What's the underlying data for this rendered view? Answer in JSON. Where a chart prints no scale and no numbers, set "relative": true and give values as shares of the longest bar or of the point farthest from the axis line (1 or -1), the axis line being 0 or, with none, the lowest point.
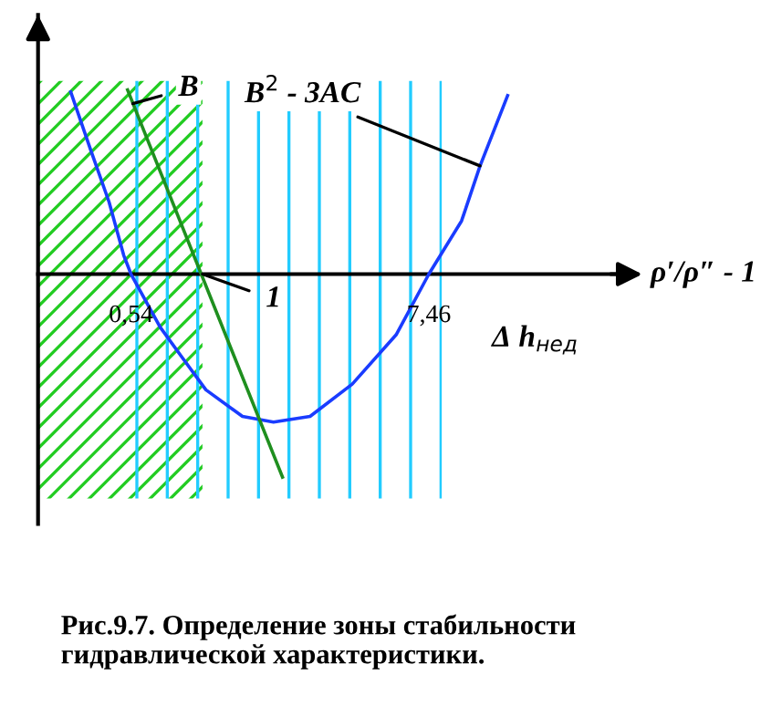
{
  "chart_data": {
    "type": "line",
    "relative": true,
    "xlabel": "ρ′/ρ″ - 1",
    "x": [
      -0.86,
      -0.39,
      0.03,
      0.37,
      0.54,
      1.22,
      1.73,
      2.28,
      3.13,
      3.85,
      4.7,
      5.68,
      6.7,
      7.46,
      8.22,
      8.65,
      9.29
    ],
    "series": [
      {
        "color": "#1a3cff",
        "values": [
          0.897,
          0.607,
          0.355,
          0.093,
          0.0,
          -0.262,
          -0.411,
          -0.57,
          -0.701,
          -0.729,
          -0.701,
          -0.542,
          -0.299,
          0.0,
          0.262,
          0.533,
          0.879
        ]
      },
      {
        "color": "#1f8f1f",
        "x": [
          0.46,
          4.06
        ],
        "values": [
          0.907,
          -1.0
        ]
      }
    ],
    "xlim": [
      -1.62,
      12.26
    ],
    "xticks": [
      {
        "value": 0.54,
        "label": "0,54"
      },
      {
        "value": 7.46,
        "label": "7,46"
      }
    ],
    "bands": [
      {
        "axis": "x",
        "from": -1.62,
        "to": 2.2,
        "color": "#22cc22"
      },
      {
        "axis": "x",
        "from": 0.41,
        "to": 7.76,
        "color": "#22ccff"
      }
    ],
    "annotations": [
      {
        "text": "B",
        "x": 0.58,
        "y": 0.84
      },
      {
        "text": "B$^{2}$ - 3AC",
        "x": 8.65,
        "y": 0.533
      },
      {
        "text": "1",
        "x": 2.2,
        "y": 0.0
      },
      "Δ h$_{нед}$",
      "Рис.9.7. Определение зоны стабильности гидравлической характеристики."
    ],
    "grid": false,
    "legend": false
  }
}
